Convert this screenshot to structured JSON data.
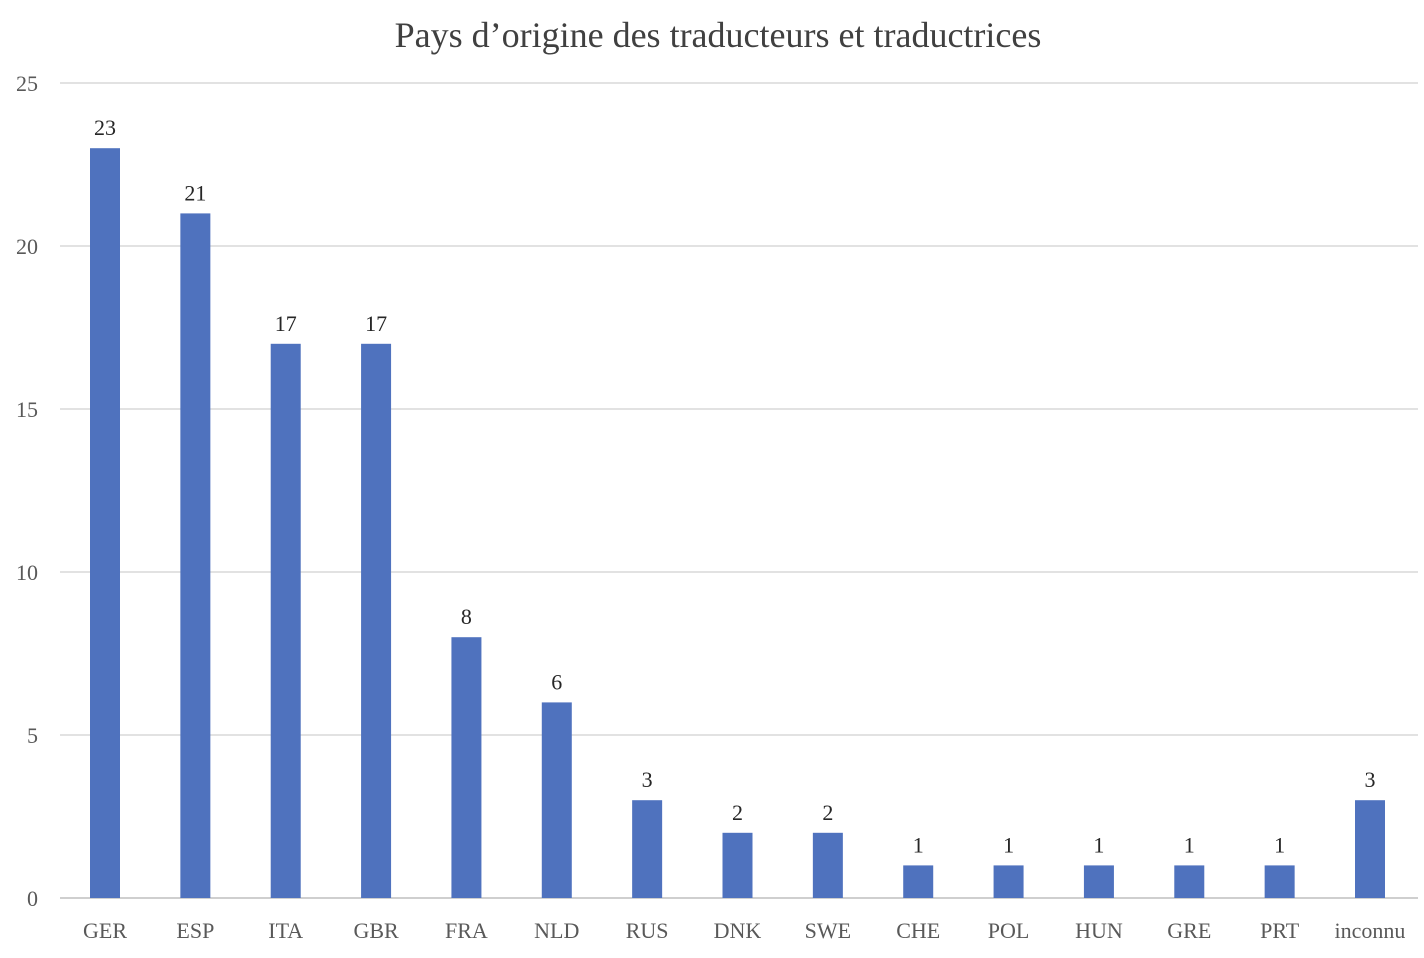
{
  "chart_data": {
    "type": "bar",
    "title": "Pays d’origine des traducteurs et traductrices",
    "xlabel": "",
    "ylabel": "",
    "categories": [
      "GER",
      "ESP",
      "ITA",
      "GBR",
      "FRA",
      "NLD",
      "RUS",
      "DNK",
      "SWE",
      "CHE",
      "POL",
      "HUN",
      "GRE",
      "PRT",
      "inconnu"
    ],
    "values": [
      23,
      21,
      17,
      17,
      8,
      6,
      3,
      2,
      2,
      1,
      1,
      1,
      1,
      1,
      3
    ],
    "ylim": [
      0,
      25
    ],
    "yticks": [
      0,
      5,
      10,
      15,
      20,
      25
    ],
    "grid": true,
    "legend": "none",
    "bar_color": "#4f72be"
  }
}
